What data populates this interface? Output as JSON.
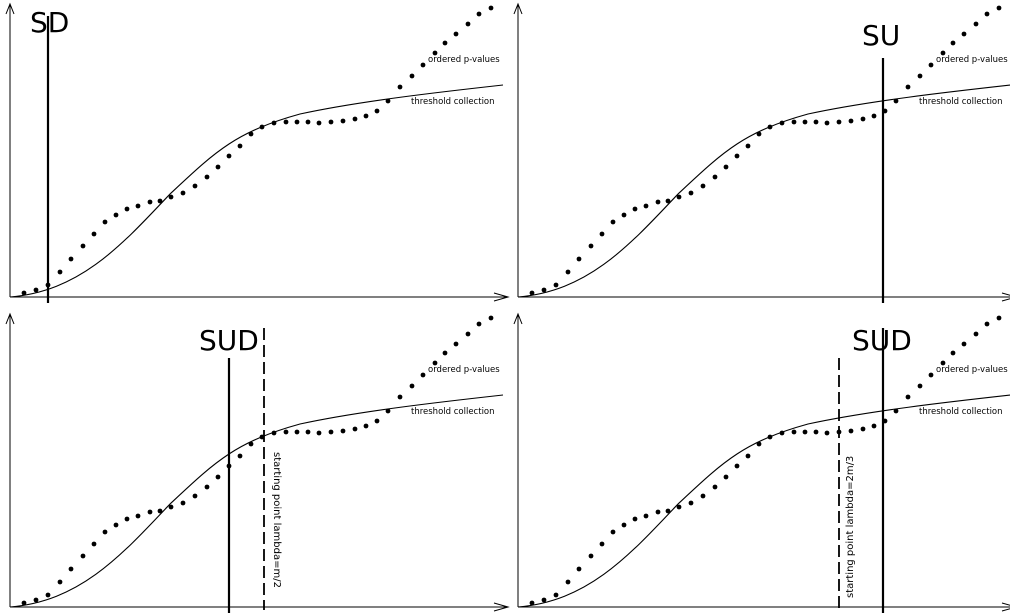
{
  "panels": [
    {
      "title": "SD",
      "dots_label": "ordered p-values",
      "curve_label": "threshold collection",
      "solid_line": true,
      "dashed_line": false,
      "dashed_label": ""
    },
    {
      "title": "SU",
      "dots_label": "ordered p-values",
      "curve_label": "threshold collection",
      "solid_line": true,
      "dashed_line": false,
      "dashed_label": ""
    },
    {
      "title": "SUD",
      "dots_label": "ordered p-values",
      "curve_label": "threshold collection",
      "solid_line": true,
      "dashed_line": true,
      "dashed_label": "starting point lambda=m/2"
    },
    {
      "title": "SUD",
      "dots_label": "ordered p-values",
      "curve_label": "threshold collection",
      "solid_line": true,
      "dashed_line": true,
      "dashed_label": "starting point lambda=2m/3"
    }
  ]
}
